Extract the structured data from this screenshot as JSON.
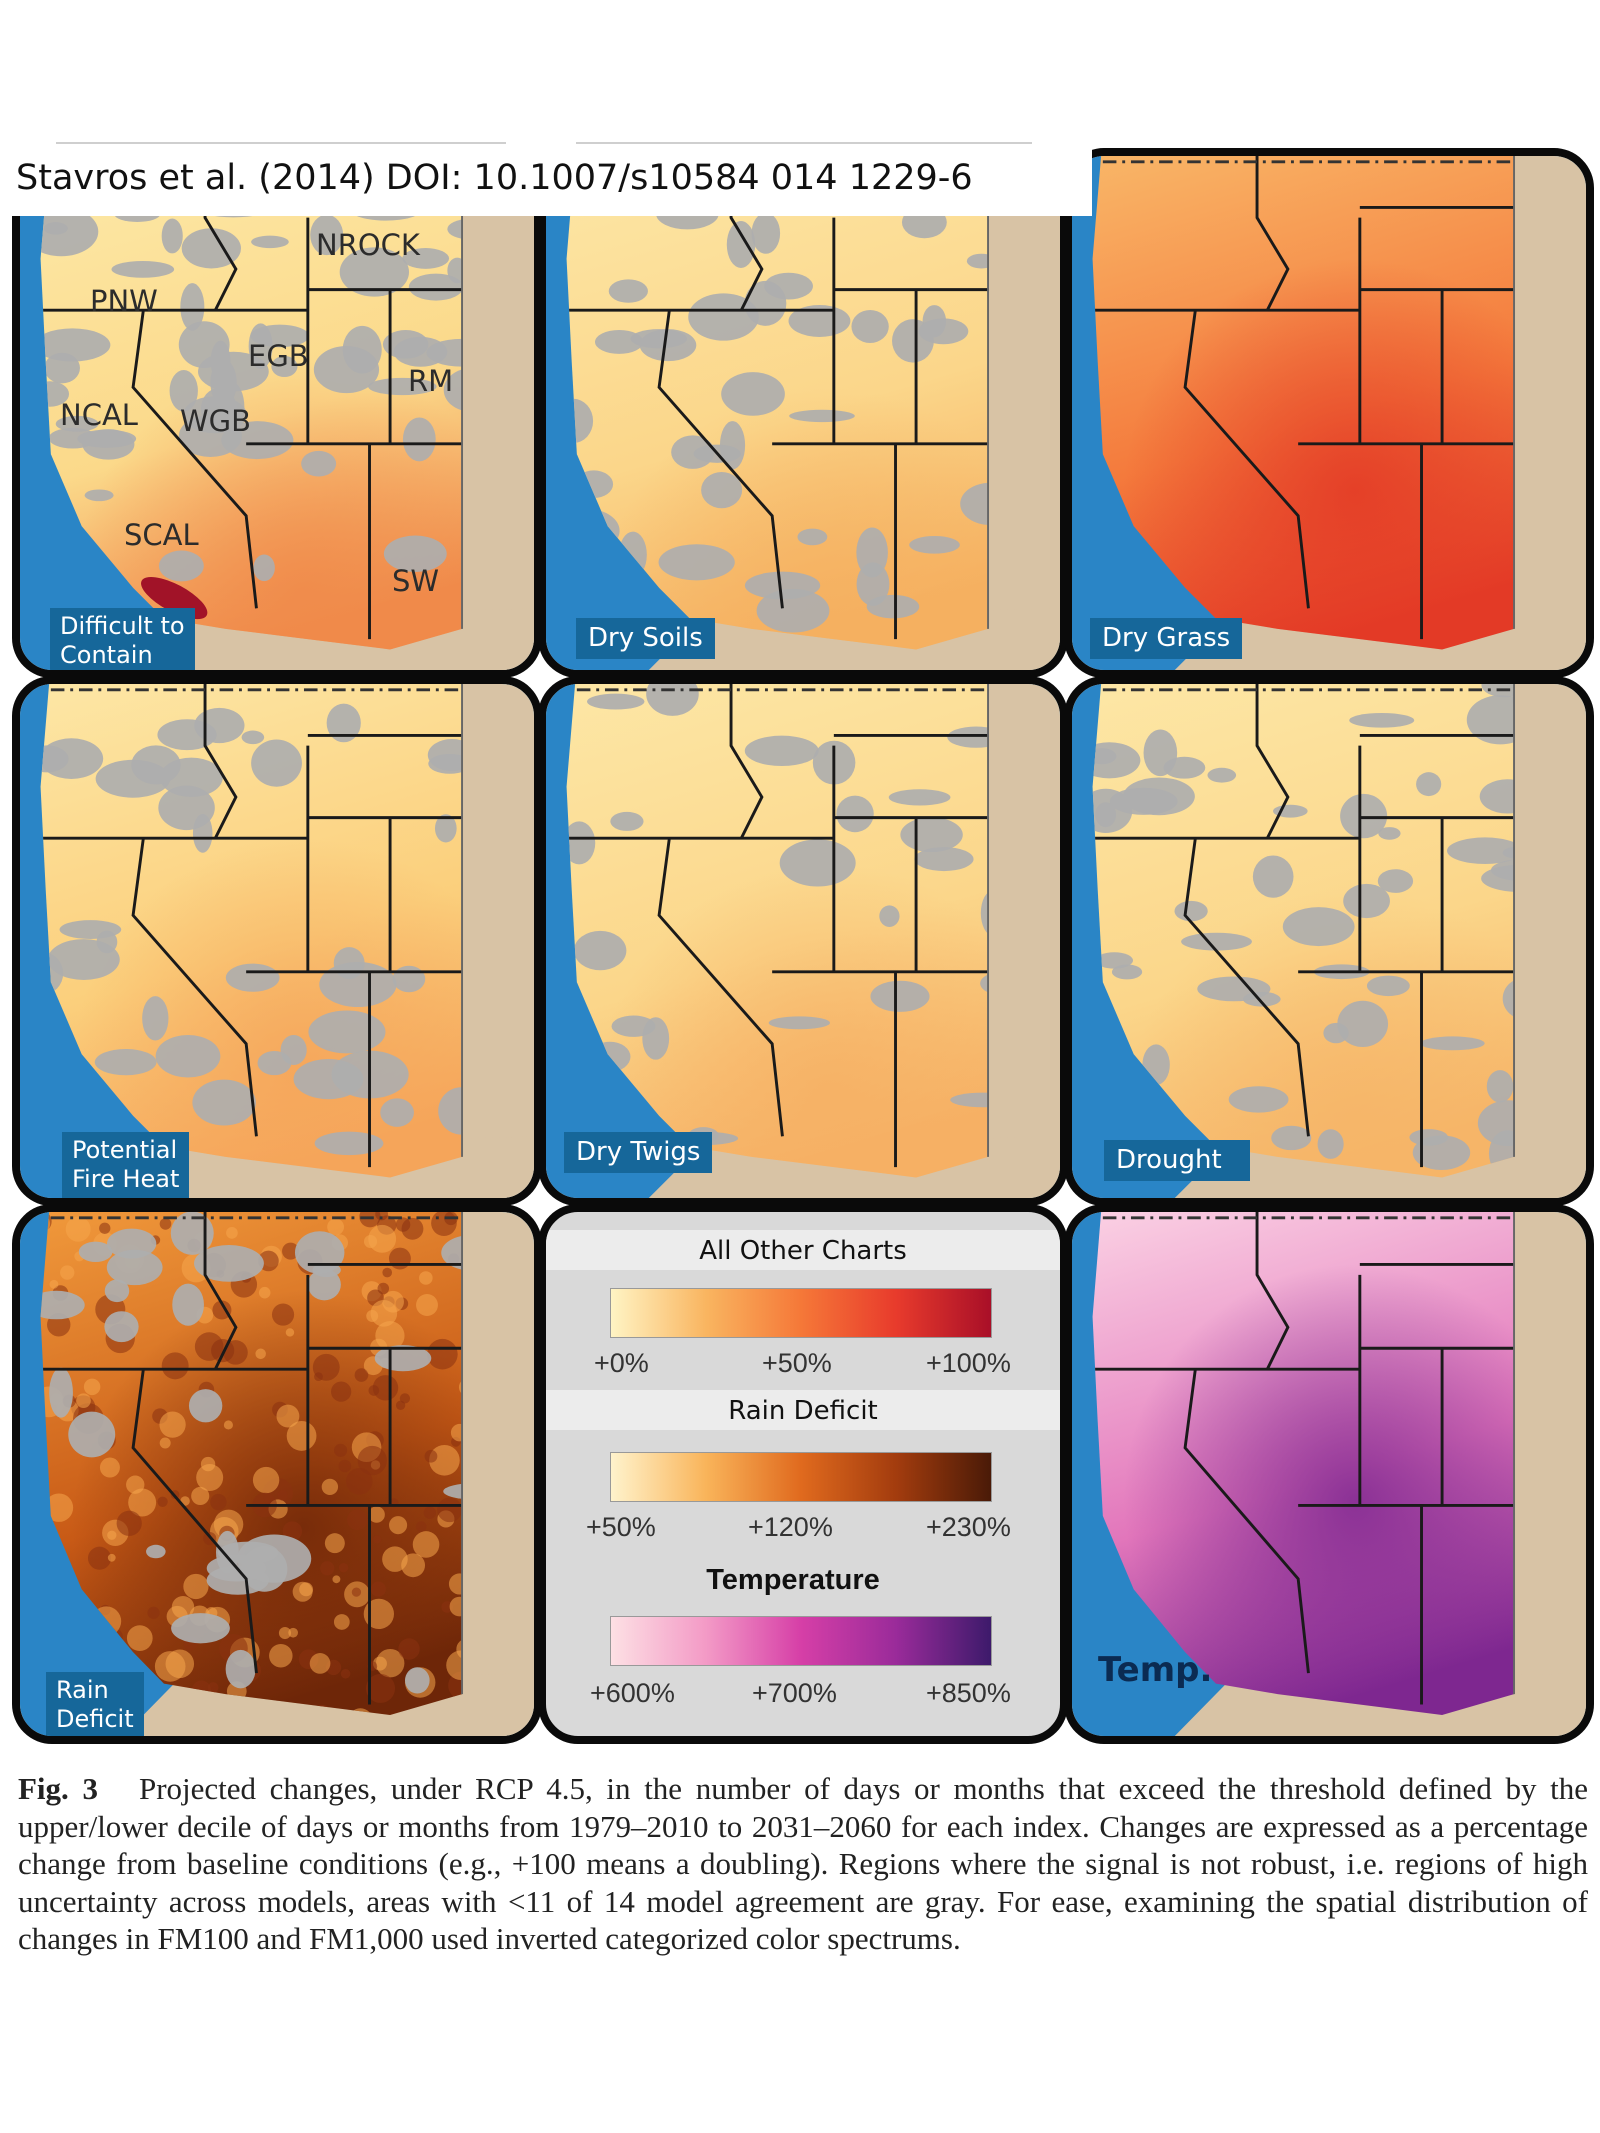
{
  "source": "Stavros et al. (2014) DOI: 10.1007/s10584 014 1229-6",
  "panels": [
    {
      "label": "Difficult to\nContain",
      "theme": "difficult"
    },
    {
      "label": "Dry Soils",
      "theme": "drysoils"
    },
    {
      "label": "Dry Grass",
      "theme": "drygrass"
    },
    {
      "label": "Potential\nFire Heat",
      "theme": "fireheat"
    },
    {
      "label": "Dry Twigs",
      "theme": "drytwigs"
    },
    {
      "label": "Drought",
      "theme": "drought"
    },
    {
      "label": "Rain\nDeficit",
      "theme": "rain"
    },
    {
      "label": "Temp.",
      "theme": "temp"
    }
  ],
  "region_labels": [
    "NROCK",
    "PNW",
    "EGB",
    "RM",
    "NCAL",
    "WGB",
    "SCAL",
    "SW"
  ],
  "legend": {
    "sections": [
      {
        "title": "All Other Charts",
        "ticks": [
          "+0%",
          "+50%",
          "+100%"
        ],
        "colors": [
          "#fff4c4",
          "#f9b560",
          "#f57838",
          "#e83b2c",
          "#a90f28"
        ]
      },
      {
        "title": "Rain Deficit",
        "ticks": [
          "+50%",
          "+120%",
          "+230%"
        ],
        "colors": [
          "#fff3cc",
          "#f9b45a",
          "#e06a1e",
          "#a33c0e",
          "#4a1a07"
        ]
      },
      {
        "title": "Temperature",
        "ticks": [
          "+600%",
          "+700%",
          "+850%"
        ],
        "colors": [
          "#fde0e4",
          "#f39ac6",
          "#d63fa7",
          "#9a2b9a",
          "#3d1a6b"
        ]
      }
    ]
  },
  "colors": {
    "ocean": "#2a85c6",
    "land_outside": "#d8c3a5",
    "gray_uncertain": "#aeaeae",
    "label_bg": "#16679a"
  },
  "caption": {
    "lead": "Fig. 3",
    "text": "Projected changes, under RCP 4.5, in the number of days or months that exceed the threshold defined by the upper/lower decile of days or months from 1979–2010 to 2031–2060 for each index. Changes are expressed as a percentage change from baseline conditions (e.g., +100 means a doubling). Regions where the signal is not robust, i.e. regions of high uncertainty across models, areas with <11 of 14 model agreement are gray. For ease, examining the spatial distribution of changes in FM100 and FM1,000 used inverted categorized color spectrums."
  }
}
